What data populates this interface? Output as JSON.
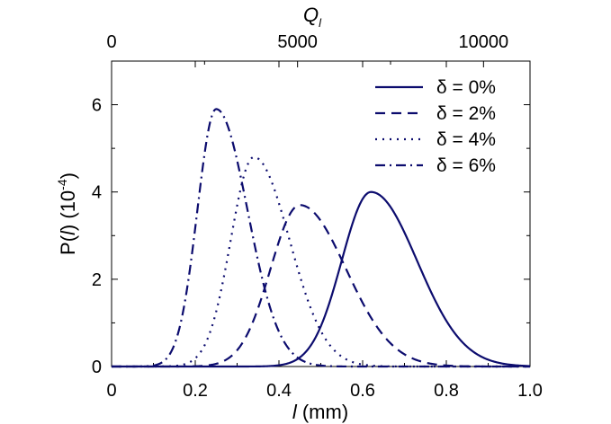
{
  "chart_data": {
    "type": "line",
    "title": "",
    "xlabel": {
      "italic": "l",
      "rest": " (mm)"
    },
    "ylabel": {
      "prefix": "P(",
      "italic": "l",
      "suffix": ")  (10",
      "exp": "-4",
      "close": ")"
    },
    "top_xlabel": {
      "main": "Q",
      "sub": "l"
    },
    "xlim": [
      0,
      1.0
    ],
    "ylim": [
      0,
      7
    ],
    "x_ticks": [
      0,
      0.2,
      0.4,
      0.6,
      0.8,
      1.0
    ],
    "x_tick_labels": [
      "0",
      "0.2",
      "0.4",
      "0.6",
      "0.8",
      "1.0"
    ],
    "y_ticks": [
      0,
      2,
      4,
      6
    ],
    "y_tick_labels": [
      "0",
      "2",
      "4",
      "6"
    ],
    "top_xlim": [
      0,
      11250
    ],
    "top_ticks": [
      0,
      5000,
      10000
    ],
    "top_tick_labels": [
      "0",
      "5000",
      "10000"
    ],
    "legend_position": "top-right",
    "line_color": "#0c0c6e",
    "series": [
      {
        "name": "δ = 0%",
        "style": "solid",
        "peak_x": 0.62,
        "peak_y": 4.0,
        "sigma_left": 0.07,
        "sigma_right": 0.11
      },
      {
        "name": "δ = 2%",
        "style": "dashed",
        "peak_x": 0.45,
        "peak_y": 3.7,
        "sigma_left": 0.07,
        "sigma_right": 0.11
      },
      {
        "name": "δ = 4%",
        "style": "dotted",
        "peak_x": 0.34,
        "peak_y": 4.8,
        "sigma_left": 0.055,
        "sigma_right": 0.085
      },
      {
        "name": "δ = 6%",
        "style": "dashdot",
        "peak_x": 0.25,
        "peak_y": 5.9,
        "sigma_left": 0.045,
        "sigma_right": 0.075
      }
    ]
  }
}
